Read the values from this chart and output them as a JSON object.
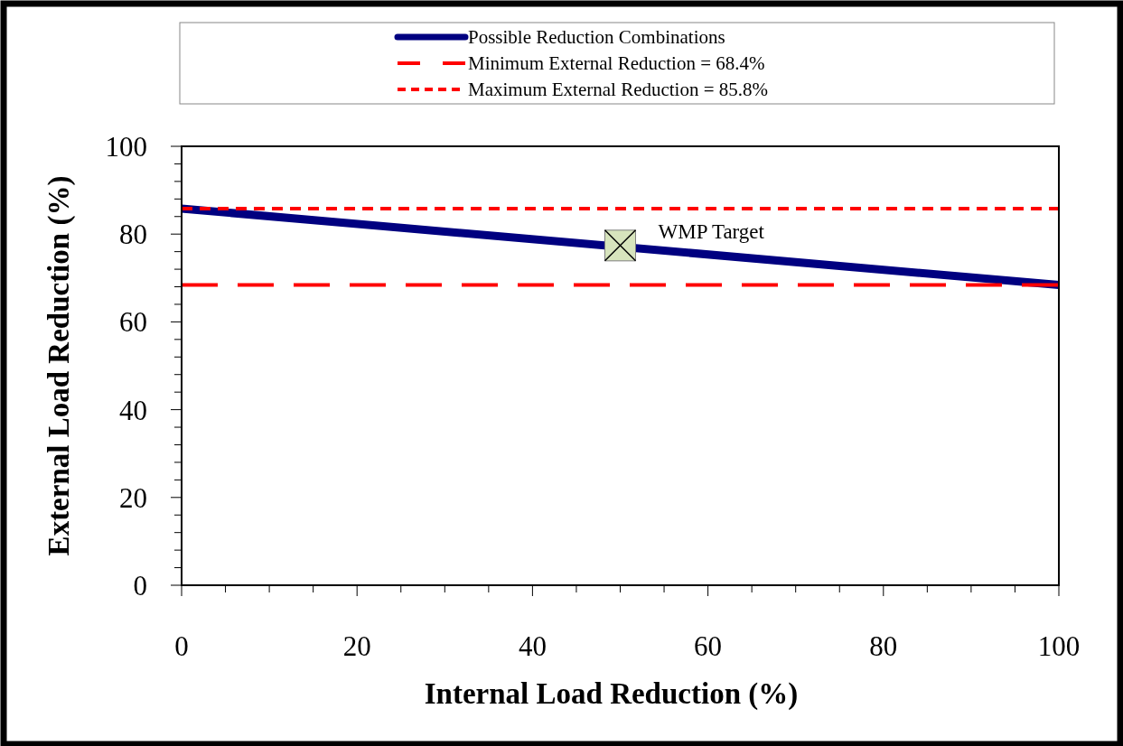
{
  "chart_data": {
    "type": "line",
    "xlabel": "Internal Load Reduction (%)",
    "ylabel": "External Load Reduction (%)",
    "xlim": [
      0,
      100
    ],
    "ylim": [
      0,
      100
    ],
    "xticks": [
      0,
      {
        "value": 5,
        "label": null
      },
      {
        "value": 10,
        "label": null
      },
      {
        "value": 15,
        "label": null
      },
      20,
      {
        "value": 25,
        "label": null
      },
      {
        "value": 30,
        "label": null
      },
      {
        "value": 35,
        "label": null
      },
      40,
      {
        "value": 45,
        "label": null
      },
      {
        "value": 50,
        "label": null
      },
      {
        "value": 55,
        "label": null
      },
      60,
      {
        "value": 65,
        "label": null
      },
      {
        "value": 70,
        "label": null
      },
      {
        "value": 75,
        "label": null
      },
      80,
      {
        "value": 85,
        "label": null
      },
      {
        "value": 90,
        "label": null
      },
      {
        "value": 95,
        "label": null
      },
      100
    ],
    "yticks": [
      0,
      {
        "value": 4,
        "label": null
      },
      {
        "value": 8,
        "label": null
      },
      {
        "value": 12,
        "label": null
      },
      {
        "value": 16,
        "label": null
      },
      20,
      {
        "value": 24,
        "label": null
      },
      {
        "value": 28,
        "label": null
      },
      {
        "value": 32,
        "label": null
      },
      {
        "value": 36,
        "label": null
      },
      40,
      {
        "value": 44,
        "label": null
      },
      {
        "value": 48,
        "label": null
      },
      {
        "value": 52,
        "label": null
      },
      {
        "value": 56,
        "label": null
      },
      60,
      {
        "value": 64,
        "label": null
      },
      {
        "value": 68,
        "label": null
      },
      {
        "value": 72,
        "label": null
      },
      {
        "value": 76,
        "label": null
      },
      80,
      {
        "value": 84,
        "label": null
      },
      {
        "value": 88,
        "label": null
      },
      {
        "value": 92,
        "label": null
      },
      {
        "value": 96,
        "label": null
      },
      100
    ],
    "grid": false,
    "legend": "top",
    "series": [
      {
        "name": "Possible Reduction Combinations",
        "color": "#000080",
        "x": [
          0,
          100
        ],
        "values": [
          85.8,
          68.4
        ],
        "line_style": "solid"
      },
      {
        "name": "Minimum External Reduction = 68.4%",
        "color": "#ff0000",
        "x": [
          0,
          100
        ],
        "values": [
          68.4,
          68.4
        ],
        "line_style": "dashed"
      },
      {
        "name": "Maximum External Reduction = 85.8%",
        "color": "#ff0000",
        "x": [
          0,
          100
        ],
        "values": [
          85.8,
          85.8
        ],
        "line_style": "dotted"
      },
      {
        "type": "scatter",
        "color": "#d7e4bd",
        "x": [
          50
        ],
        "values": [
          77.4
        ],
        "marker": "square"
      }
    ],
    "annotations": [
      {
        "text": "WMP Target",
        "x": 50,
        "y": 77.4
      }
    ]
  }
}
